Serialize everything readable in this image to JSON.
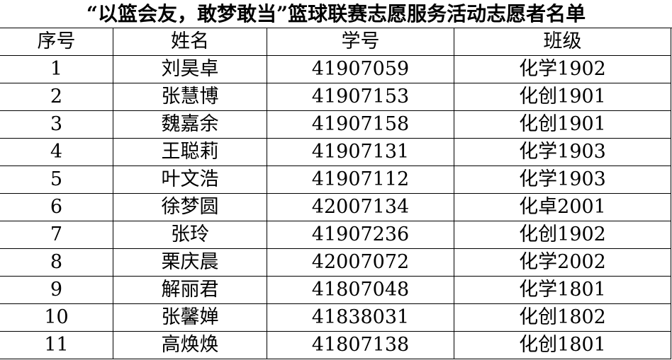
{
  "title": "“以篮会友，敢梦敢当”篮球联赛志愿服务活动志愿者名单",
  "headers": [
    "序号",
    "姓名",
    "学号",
    "班级"
  ],
  "rows": [
    [
      "1",
      "刘昊卓",
      "41907059",
      "化学1902"
    ],
    [
      "2",
      "张慧博",
      "41907153",
      "化创1901"
    ],
    [
      "3",
      "魏嘉余",
      "41907158",
      "化创1901"
    ],
    [
      "4",
      "王聪莉",
      "41907131",
      "化学1903"
    ],
    [
      "5",
      "叶文浩",
      "41907112",
      "化学1903"
    ],
    [
      "6",
      "徐梦圆",
      "42007134",
      "化卓2001"
    ],
    [
      "7",
      "张玲",
      "41907236",
      "化创1902"
    ],
    [
      "8",
      "栗庆晨",
      "42007072",
      "化学2002"
    ],
    [
      "9",
      "解丽君",
      "41807048",
      "化学1801"
    ],
    [
      "10",
      "张馨婵",
      "41838031",
      "化创1802"
    ],
    [
      "11",
      "高焕焕",
      "41807138",
      "化创1801"
    ]
  ]
}
